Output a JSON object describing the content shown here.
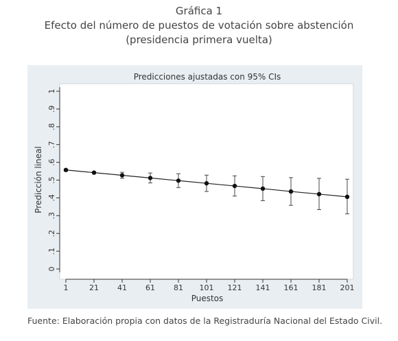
{
  "figure": {
    "label": "Gráfica 1",
    "title": "Efecto del número de puestos de votación sobre abstención",
    "subtitle": "(presidencia primera vuelta)",
    "source": "Fuente: Elaboración propia con datos de la Registraduría Nacional del Estado Civil."
  },
  "chart_data": {
    "type": "line",
    "title": "Predicciones ajustadas con 95% CIs",
    "xlabel": "Puestos",
    "ylabel": "Predicción lineal",
    "x_ticks": [
      1,
      21,
      41,
      61,
      81,
      101,
      121,
      141,
      161,
      181,
      201
    ],
    "y_ticks": [
      0,
      0.1,
      0.2,
      0.3,
      0.4,
      0.5,
      0.6,
      0.7,
      0.8,
      0.9,
      1
    ],
    "y_tick_labels": [
      "0",
      ".1",
      ".2",
      ".3",
      ".4",
      ".5",
      ".6",
      ".7",
      ".8",
      ".9",
      "1"
    ],
    "xlim": [
      1,
      201
    ],
    "ylim": [
      0,
      1
    ],
    "grid": false,
    "series": [
      {
        "x": [
          1,
          21,
          41,
          61,
          81,
          101,
          121,
          141,
          161,
          181,
          201
        ],
        "y": [
          0.557,
          0.542,
          0.527,
          0.512,
          0.497,
          0.482,
          0.467,
          0.452,
          0.436,
          0.421,
          0.406
        ],
        "ci_low": [
          0.55,
          0.537,
          0.51,
          0.484,
          0.458,
          0.436,
          0.41,
          0.384,
          0.358,
          0.334,
          0.31
        ],
        "ci_high": [
          0.563,
          0.547,
          0.544,
          0.54,
          0.536,
          0.528,
          0.524,
          0.52,
          0.514,
          0.51,
          0.505
        ]
      }
    ]
  }
}
